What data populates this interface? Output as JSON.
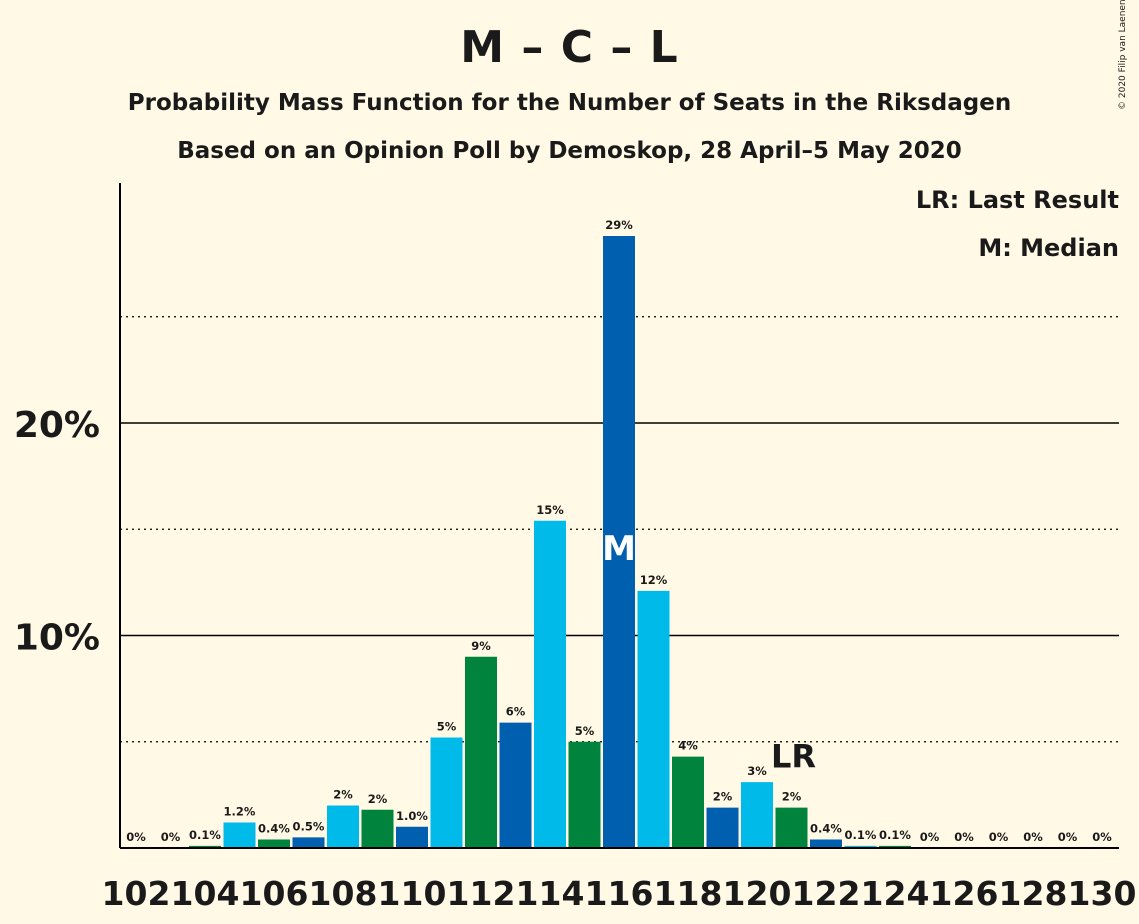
{
  "chart_data": {
    "type": "bar",
    "title": "M – C – L",
    "subtitles": [
      "Probability Mass Function for the Number of Seats in the Riksdagen",
      "Based on an Opinion Poll by Demoskop, 28 April–5 May 2020"
    ],
    "copyright": "© 2020 Filip van Laenen",
    "legend": [
      "LR: Last Result",
      "M: Median"
    ],
    "legend_position": "top-right",
    "categories": [
      102,
      103,
      104,
      105,
      106,
      107,
      108,
      109,
      110,
      111,
      112,
      113,
      114,
      115,
      116,
      117,
      118,
      119,
      120,
      121,
      122,
      123,
      124,
      125,
      126,
      127,
      128,
      129,
      130
    ],
    "values": [
      0,
      0,
      0.1,
      1.2,
      0.4,
      0.5,
      2,
      1.8,
      1.0,
      5.2,
      9.0,
      5.9,
      15.4,
      5.0,
      28.8,
      12.1,
      4.3,
      1.9,
      3.1,
      1.9,
      0.4,
      0.1,
      0.1,
      0,
      0,
      0,
      0,
      0,
      0
    ],
    "data_labels": [
      "0%",
      "0%",
      "0.1%",
      "1.2%",
      "0.4%",
      "0.5%",
      "2%",
      "2%",
      "1.0%",
      "5%",
      "9%",
      "6%",
      "15%",
      "5%",
      "29%",
      "12%",
      "4%",
      "2%",
      "3%",
      "2%",
      "0.4%",
      "0.1%",
      "0.1%",
      "0%",
      "0%",
      "0%",
      "0%",
      "0%",
      "0%"
    ],
    "bar_colors": [
      "#0060AF",
      "#00BAEA",
      "#00843D",
      "#00BAEA",
      "#00843D",
      "#0060AF",
      "#00BAEA",
      "#00843D",
      "#0060AF",
      "#00BAEA",
      "#00843D",
      "#0060AF",
      "#00BAEA",
      "#00843D",
      "#0060AF",
      "#00BAEA",
      "#00843D",
      "#0060AF",
      "#00BAEA",
      "#00843D",
      "#0060AF",
      "#00BAEA",
      "#00843D",
      "#0060AF",
      "#00BAEA",
      "#00843D",
      "#0060AF",
      "#00BAEA",
      "#00843D"
    ],
    "x_tick_labels": [
      "102",
      "104",
      "106",
      "108",
      "110",
      "112",
      "114",
      "116",
      "118",
      "120",
      "122",
      "124",
      "126",
      "128",
      "130"
    ],
    "y_tick_labels": [
      "10%",
      "20%"
    ],
    "y_ticks": [
      10,
      20
    ],
    "y_minor_gridlines": [
      5,
      15,
      25
    ],
    "ylim": [
      0,
      31
    ],
    "median_seat": 116,
    "median_label": "M",
    "last_result_seat": 121,
    "last_result_label": "LR"
  }
}
